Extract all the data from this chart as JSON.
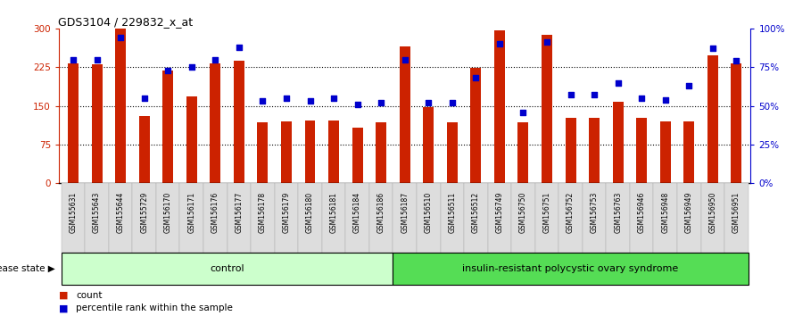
{
  "title": "GDS3104 / 229832_x_at",
  "samples": [
    "GSM155631",
    "GSM155643",
    "GSM155644",
    "GSM155729",
    "GSM156170",
    "GSM156171",
    "GSM156176",
    "GSM156177",
    "GSM156178",
    "GSM156179",
    "GSM156180",
    "GSM156181",
    "GSM156184",
    "GSM156186",
    "GSM156187",
    "GSM156510",
    "GSM156511",
    "GSM156512",
    "GSM156749",
    "GSM156750",
    "GSM156751",
    "GSM156752",
    "GSM156753",
    "GSM156763",
    "GSM156946",
    "GSM156948",
    "GSM156949",
    "GSM156950",
    "GSM156951"
  ],
  "bar_values": [
    233,
    230,
    300,
    130,
    218,
    168,
    232,
    238,
    118,
    120,
    122,
    122,
    108,
    118,
    265,
    148,
    118,
    224,
    296,
    119,
    288,
    126,
    126,
    158,
    126,
    120,
    120,
    248,
    232
  ],
  "dot_pct": [
    80,
    80,
    94,
    55,
    73,
    75,
    80,
    88,
    53,
    55,
    53,
    55,
    51,
    52,
    80,
    52,
    52,
    68,
    90,
    46,
    91,
    57,
    57,
    65,
    55,
    54,
    63,
    87,
    79
  ],
  "n_control": 14,
  "group_labels": [
    "control",
    "insulin-resistant polycystic ovary syndrome"
  ],
  "group_color_control": "#ccffcc",
  "group_color_disease": "#55dd55",
  "bar_color": "#cc2200",
  "dot_color": "#0000cc",
  "ylim_left": [
    0,
    300
  ],
  "ylim_right": [
    0,
    100
  ],
  "yticks_left": [
    0,
    75,
    150,
    225,
    300
  ],
  "yticks_right": [
    0,
    25,
    50,
    75,
    100
  ],
  "ytick_labels_left": [
    "0",
    "75",
    "150",
    "225",
    "300"
  ],
  "ytick_labels_right": [
    "0%",
    "25%",
    "50%",
    "75%",
    "100%"
  ],
  "legend_count": "count",
  "legend_pct": "percentile rank within the sample",
  "disease_state_label": "disease state"
}
